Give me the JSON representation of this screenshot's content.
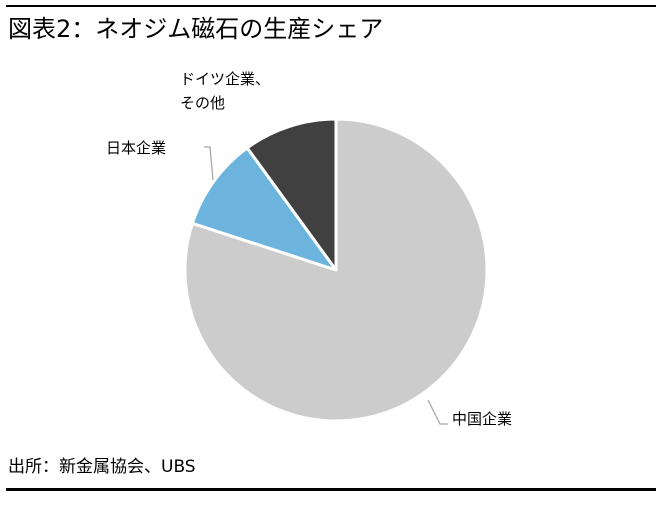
{
  "title": "図表2：ネオジム磁石の生産シェア",
  "source": "出所：新金属協会、UBS",
  "chart_data": {
    "type": "pie",
    "title": "図表2：ネオジム磁石の生産シェア",
    "start_angle_deg": 0,
    "direction": "clockwise",
    "legend": "none",
    "slices": [
      {
        "label": "中国企業",
        "label_lines": [
          "中国企業"
        ],
        "value": 80,
        "color": "#cccccc"
      },
      {
        "label": "日本企業",
        "label_lines": [
          "日本企業"
        ],
        "value": 10,
        "color": "#6cb4de"
      },
      {
        "label": "ドイツ企業、その他",
        "label_lines": [
          "ドイツ企業、",
          "その他"
        ],
        "value": 10,
        "color": "#404040"
      }
    ]
  }
}
